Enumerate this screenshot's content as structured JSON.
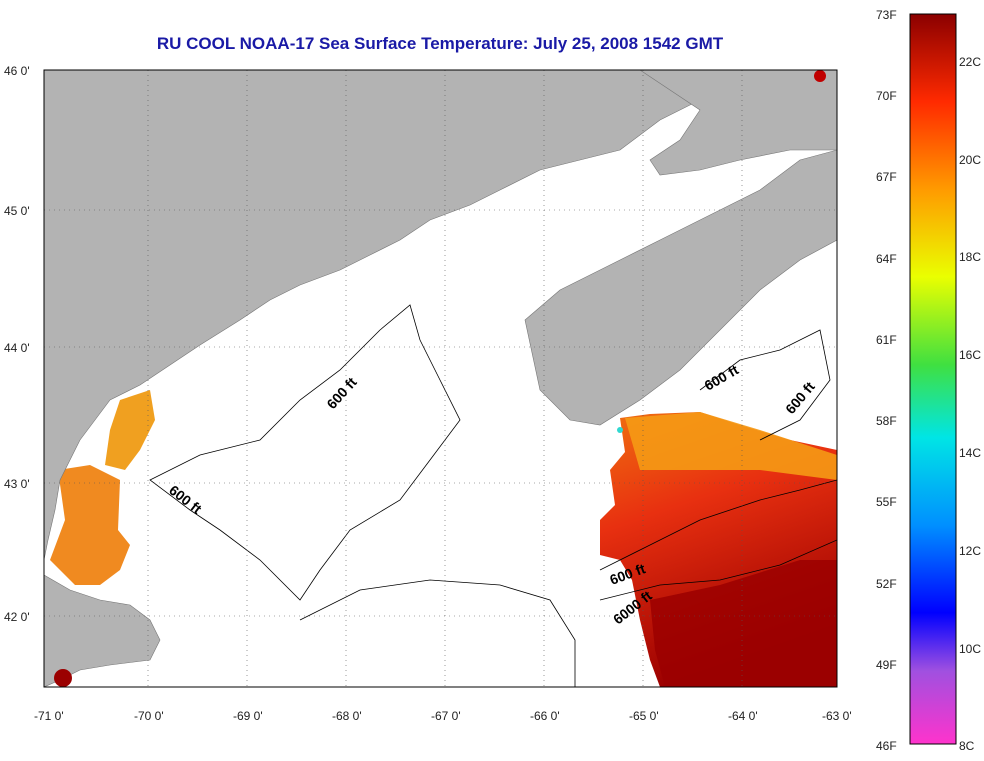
{
  "title": "RU COOL  NOAA-17  Sea Surface Temperature:  July 25, 2008 1542 GMT",
  "map": {
    "lat_labels": [
      "46 0'",
      "45 0'",
      "44 0'",
      "43 0'",
      "42 0'"
    ],
    "lon_labels": [
      "-71 0'",
      "-70 0'",
      "-69 0'",
      "-68 0'",
      "-67 0'",
      "-66 0'",
      "-65 0'",
      "-64 0'",
      "-63 0'"
    ],
    "contour_labels": [
      "600 ft",
      "600 ft",
      "600 ft",
      "600 ft",
      "600 ft",
      "6000 ft"
    ],
    "colors": {
      "land": "#b3b3b3",
      "ocean": "#ffffff",
      "warm": "#8b0000"
    }
  },
  "colorbar": {
    "f_labels": [
      "73F",
      "70F",
      "67F",
      "64F",
      "61F",
      "58F",
      "55F",
      "52F",
      "49F",
      "46F"
    ],
    "c_labels": [
      "22C",
      "20C",
      "18C",
      "16C",
      "14C",
      "12C",
      "10C",
      "8C"
    ],
    "colors": [
      "#ff33cc",
      "#a050e0",
      "#0000ff",
      "#0080ff",
      "#00e5e5",
      "#30e060",
      "#e8ff00",
      "#ffa000",
      "#ff3000",
      "#9b0000"
    ]
  }
}
